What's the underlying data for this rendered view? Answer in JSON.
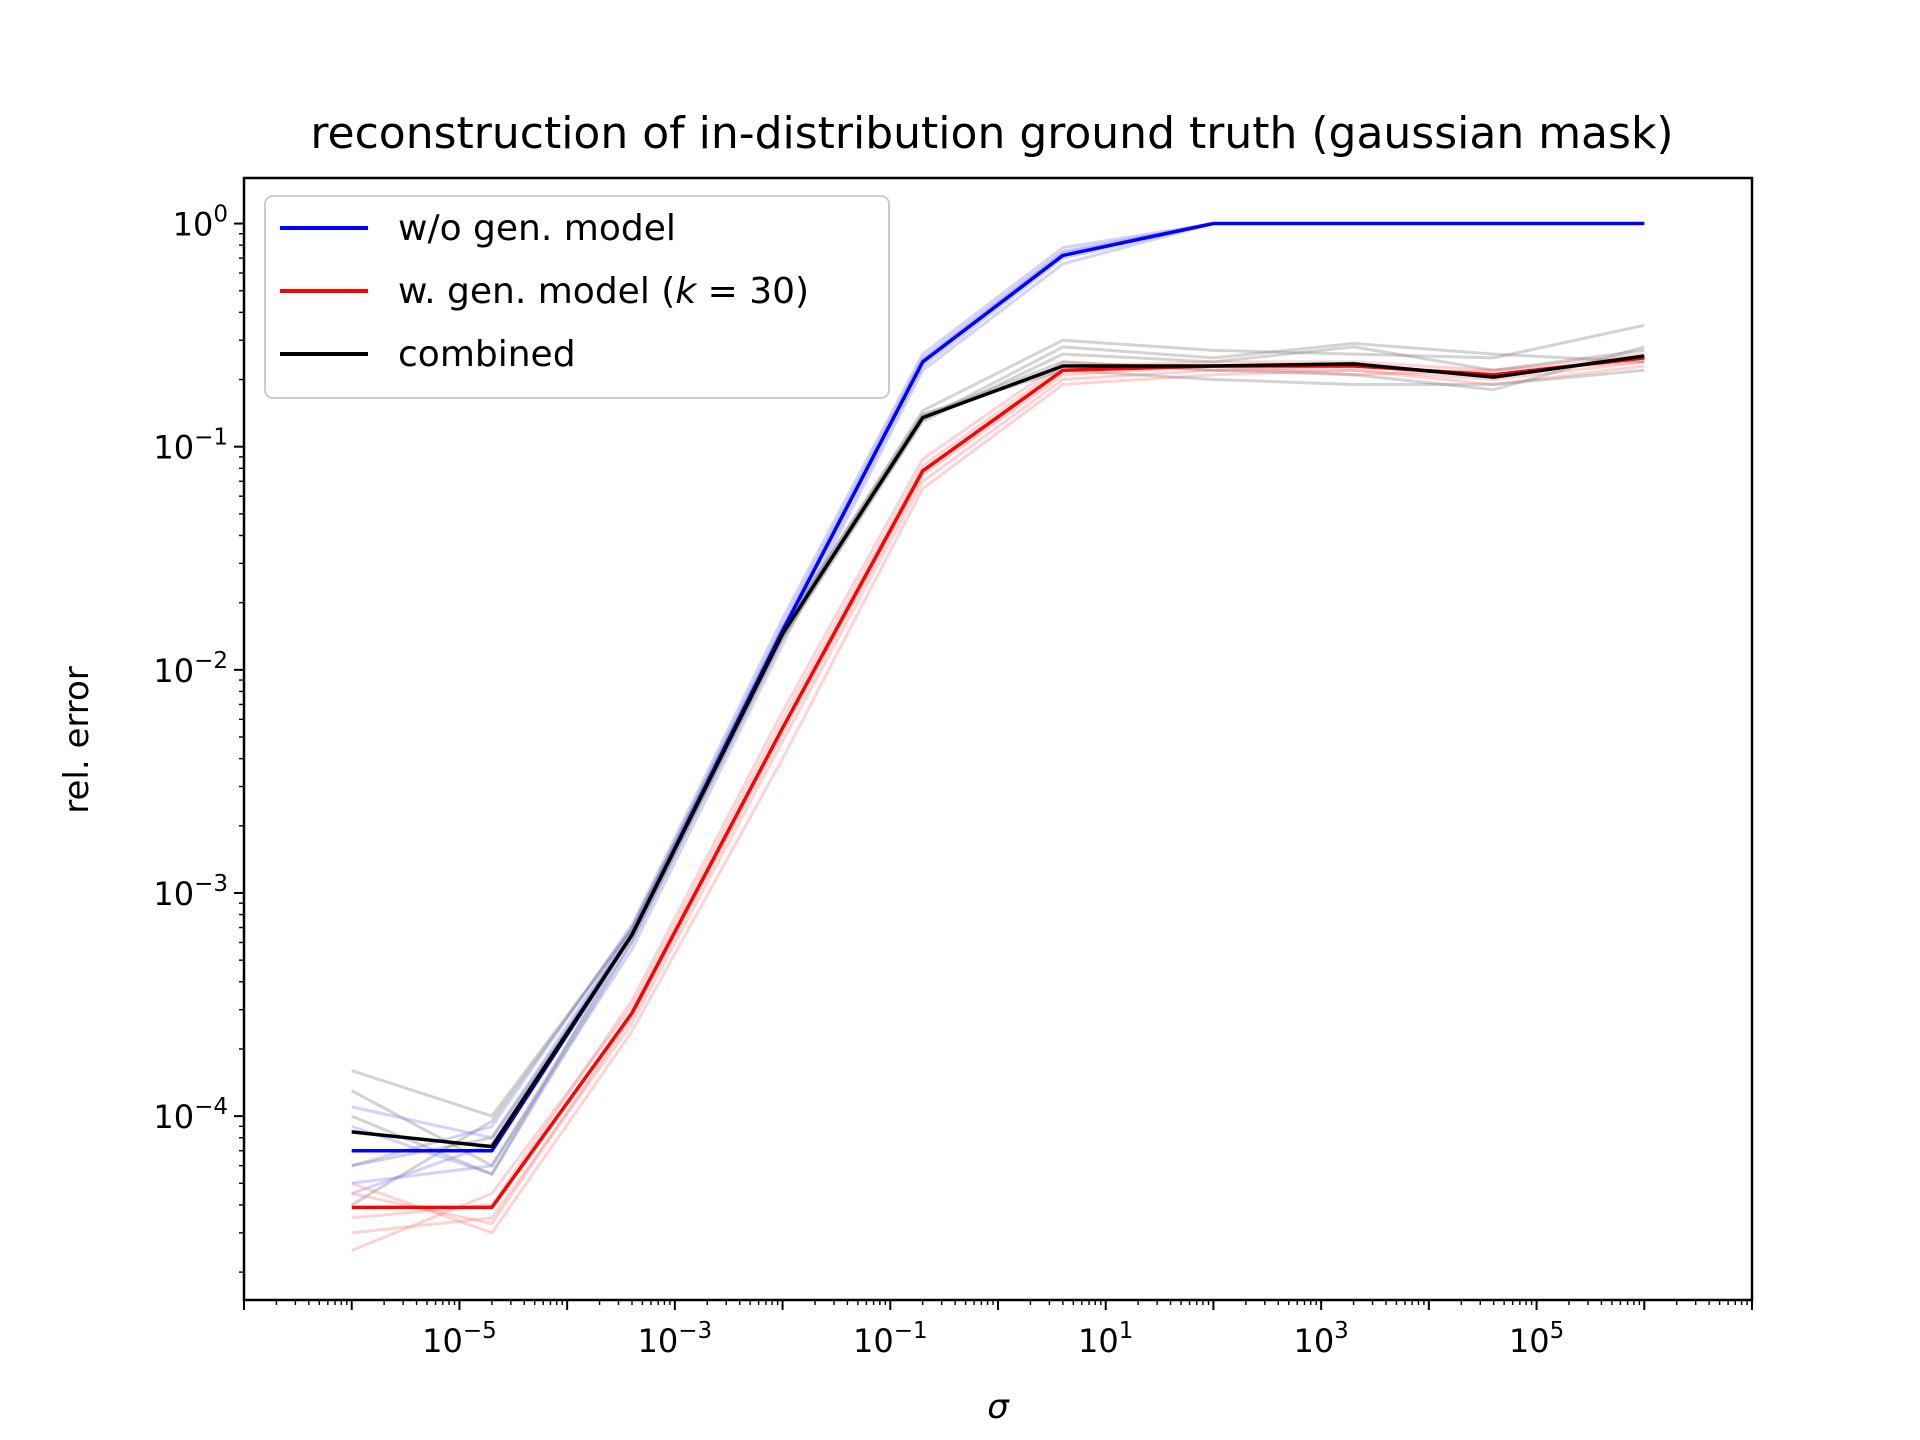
{
  "chart_data": {
    "type": "line",
    "title": "reconstruction of in-distribution ground truth (gaussian mask)",
    "xlabel": "σ",
    "ylabel": "rel. error",
    "xscale": "log",
    "yscale": "log",
    "xlim": [
      1e-07,
      10000000.0
    ],
    "ylim": [
      1.5e-05,
      1.6
    ],
    "xtick_exponents": [
      -5,
      -3,
      -1,
      1,
      3,
      5
    ],
    "ytick_exponents": [
      -4,
      -3,
      -2,
      -1,
      0
    ],
    "x": [
      1e-06,
      2e-05,
      0.0004,
      0.01,
      0.2,
      4,
      100,
      2000,
      40000,
      1000000
    ],
    "series": [
      {
        "name": "w/o gen. model",
        "color": "#0000ff",
        "faint_color": "#8080ff",
        "values": [
          7e-05,
          7e-05,
          0.00065,
          0.015,
          0.24,
          0.72,
          1.0,
          1.0,
          1.0,
          1.0
        ]
      },
      {
        "name": "w. gen. model (k = 30)",
        "name_parts": [
          "w. gen. model (",
          "k",
          " = 30)"
        ],
        "color": "#ff0000",
        "faint_color": "#ff8080",
        "values": [
          3.9e-05,
          3.9e-05,
          0.00029,
          0.0055,
          0.078,
          0.22,
          0.23,
          0.23,
          0.21,
          0.25
        ]
      },
      {
        "name": "combined",
        "color": "#000000",
        "faint_color": "#808080",
        "values": [
          8.5e-05,
          7.3e-05,
          0.00065,
          0.0145,
          0.135,
          0.23,
          0.23,
          0.235,
          0.205,
          0.255
        ]
      }
    ],
    "faint_runs": {
      "blue": [
        [
          0.00011,
          8e-05,
          0.00069,
          0.016,
          0.25,
          0.75,
          1.0,
          1.0,
          1.0,
          1.0
        ],
        [
          5e-05,
          6e-05,
          0.00056,
          0.013,
          0.22,
          0.66,
          1.0,
          1.0,
          1.0,
          1.0
        ],
        [
          6e-05,
          9e-05,
          0.00072,
          0.017,
          0.26,
          0.78,
          1.0,
          1.0,
          1.0,
          1.0
        ],
        [
          9e-05,
          5.5e-05,
          0.0006,
          0.014,
          0.23,
          0.7,
          1.0,
          1.0,
          1.0,
          1.0
        ],
        [
          4.5e-05,
          7.5e-05,
          0.00068,
          0.0155,
          0.245,
          0.74,
          1.0,
          1.0,
          1.0,
          1.0
        ]
      ],
      "red": [
        [
          3e-05,
          3.5e-05,
          0.00026,
          0.0048,
          0.07,
          0.2,
          0.22,
          0.22,
          0.2,
          0.24
        ],
        [
          2.5e-05,
          4.5e-05,
          0.00031,
          0.006,
          0.082,
          0.23,
          0.24,
          0.24,
          0.22,
          0.26
        ],
        [
          5e-05,
          3e-05,
          0.00024,
          0.004,
          0.065,
          0.19,
          0.21,
          0.22,
          0.19,
          0.23
        ],
        [
          3.5e-05,
          4e-05,
          0.00033,
          0.0065,
          0.088,
          0.24,
          0.22,
          0.23,
          0.21,
          0.25
        ],
        [
          4.5e-05,
          3.3e-05,
          0.00028,
          0.0052,
          0.075,
          0.21,
          0.23,
          0.21,
          0.22,
          0.24
        ]
      ],
      "gray": [
        [
          0.00016,
          0.0001,
          0.00069,
          0.015,
          0.145,
          0.3,
          0.27,
          0.26,
          0.25,
          0.35
        ],
        [
          0.00013,
          6e-05,
          0.00061,
          0.0138,
          0.13,
          0.26,
          0.24,
          0.28,
          0.22,
          0.27
        ],
        [
          4e-05,
          9.5e-05,
          0.0007,
          0.0155,
          0.14,
          0.22,
          0.2,
          0.19,
          0.19,
          0.22
        ],
        [
          6e-05,
          8e-05,
          0.00063,
          0.014,
          0.132,
          0.28,
          0.25,
          0.29,
          0.26,
          0.24
        ],
        [
          0.0001,
          5.5e-05,
          0.00066,
          0.0148,
          0.138,
          0.24,
          0.22,
          0.21,
          0.18,
          0.28
        ]
      ]
    },
    "legend": {
      "position": "top-left"
    },
    "grid": false
  }
}
